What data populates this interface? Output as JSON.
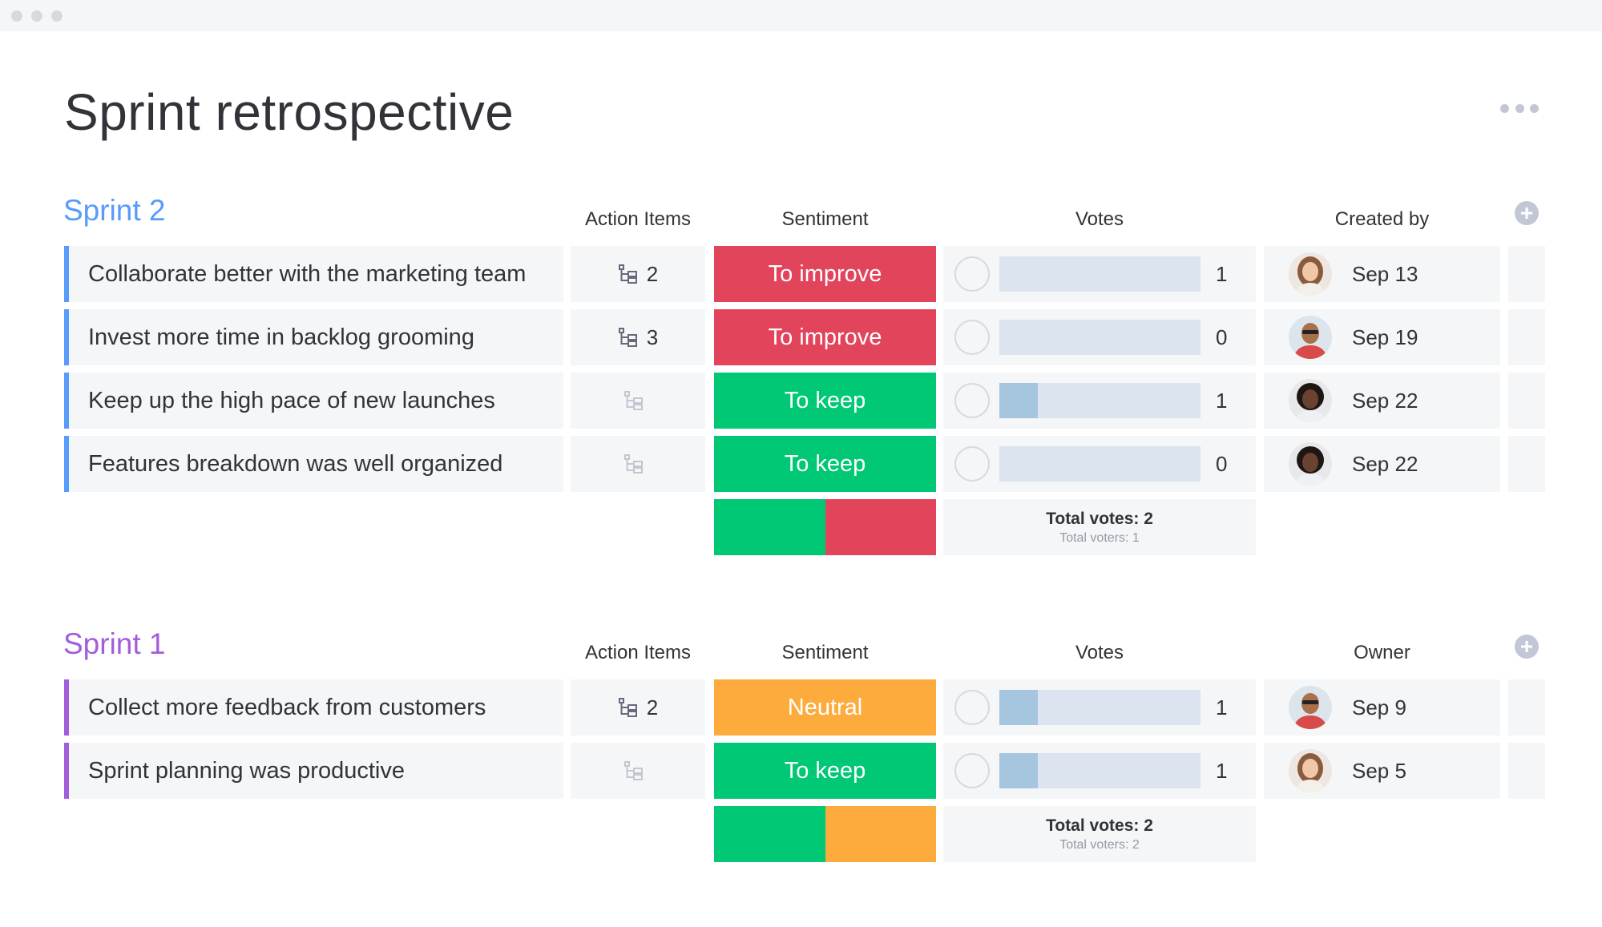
{
  "window": {
    "controls": [
      "close",
      "minimize",
      "maximize"
    ]
  },
  "page": {
    "title": "Sprint retrospective",
    "more_icon": "more-dots-icon"
  },
  "colors": {
    "to_improve": "#e2445c",
    "to_keep": "#00c875",
    "neutral": "#fdab3d",
    "sprint2": "#579bfc",
    "sprint1": "#a25ddc"
  },
  "groups": [
    {
      "title": "Sprint 2",
      "color": "#579bfc",
      "columns": {
        "action": "Action Items",
        "sentiment": "Sentiment",
        "votes": "Votes",
        "owner": "Created by"
      },
      "rows": [
        {
          "name": "Collaborate better with the marketing team",
          "action_items": "2",
          "sentiment": "To improve",
          "sentiment_color": "#e2445c",
          "vote_fill": 0,
          "votes": "1",
          "avatar": "woman-light-avatar",
          "date": "Sep 13"
        },
        {
          "name": "Invest more time in backlog grooming",
          "action_items": "3",
          "sentiment": "To improve",
          "sentiment_color": "#e2445c",
          "vote_fill": 0,
          "votes": "0",
          "avatar": "man-glasses-avatar",
          "date": "Sep 19"
        },
        {
          "name": "Keep up the high pace of new launches",
          "action_items": "",
          "sentiment": "To keep",
          "sentiment_color": "#00c875",
          "vote_fill": 0.19,
          "votes": "1",
          "avatar": "woman-dark-avatar",
          "date": "Sep 22"
        },
        {
          "name": "Features breakdown was well organized",
          "action_items": "",
          "sentiment": "To keep",
          "sentiment_color": "#00c875",
          "vote_fill": 0,
          "votes": "0",
          "avatar": "woman-dark-avatar",
          "date": "Sep 22"
        }
      ],
      "summary": {
        "sentiment_split": [
          {
            "color": "#00c875",
            "share": 0.5
          },
          {
            "color": "#e2445c",
            "share": 0.5
          }
        ],
        "total_votes": "Total votes: 2",
        "total_voters": "Total voters: 1"
      }
    },
    {
      "title": "Sprint 1",
      "color": "#a25ddc",
      "columns": {
        "action": "Action Items",
        "sentiment": "Sentiment",
        "votes": "Votes",
        "owner": "Owner"
      },
      "rows": [
        {
          "name": "Collect more feedback from customers",
          "action_items": "2",
          "sentiment": "Neutral",
          "sentiment_color": "#fdab3d",
          "vote_fill": 0.19,
          "votes": "1",
          "avatar": "man-glasses-avatar",
          "date": "Sep 9"
        },
        {
          "name": "Sprint planning was productive",
          "action_items": "",
          "sentiment": "To keep",
          "sentiment_color": "#00c875",
          "vote_fill": 0.19,
          "votes": "1",
          "avatar": "woman-light-avatar",
          "date": "Sep 5"
        }
      ],
      "summary": {
        "sentiment_split": [
          {
            "color": "#00c875",
            "share": 0.5
          },
          {
            "color": "#fdab3d",
            "share": 0.5
          }
        ],
        "total_votes": "Total votes: 2",
        "total_voters": "Total voters: 2"
      }
    }
  ]
}
